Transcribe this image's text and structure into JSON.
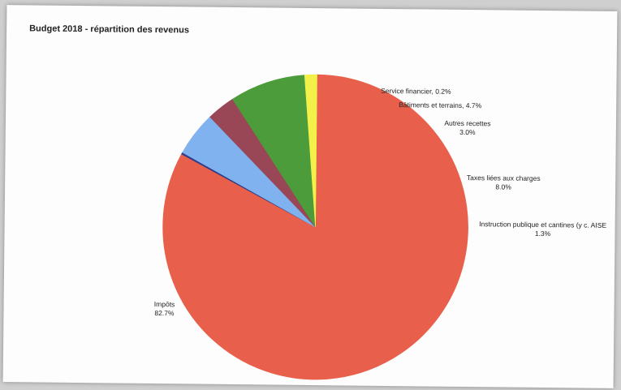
{
  "chart_data": {
    "type": "pie",
    "title": "Budget 2018 - répartition des revenus",
    "slices": [
      {
        "label": "Impôts",
        "value": 82.7,
        "value_text": "82.7%",
        "color": "#e8604c"
      },
      {
        "label": "Service financier, 0.2%",
        "value": 0.2,
        "value_text": "",
        "color": "#2f3d86"
      },
      {
        "label": "Bâtiments et terrains, 4.7%",
        "value": 4.7,
        "value_text": "",
        "color": "#7fb2ee"
      },
      {
        "label": "Autres recettes",
        "value": 3.0,
        "value_text": "3.0%",
        "color": "#994756"
      },
      {
        "label": "Taxes liées aux charges",
        "value": 8.0,
        "value_text": "8.0%",
        "color": "#4c9c3c"
      },
      {
        "label": "Instruction publique et cantines (y c. AISE",
        "value": 1.3,
        "value_text": "1.3%",
        "color": "#f4f04a"
      }
    ],
    "start_angle_deg": 90,
    "direction": "clockwise",
    "legend": "none",
    "data_labels": "outside"
  }
}
